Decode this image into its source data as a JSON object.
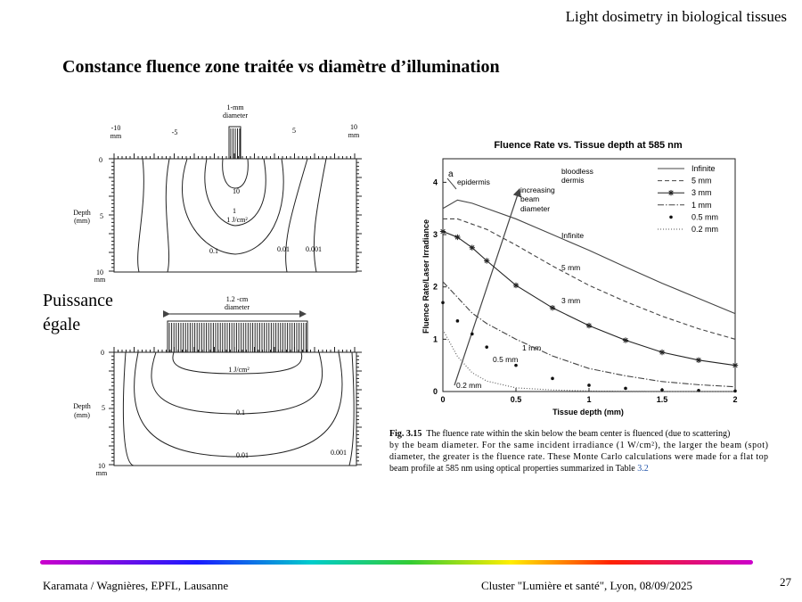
{
  "header": {
    "course": "Light dosimetry in biological tissues",
    "title": "Constance fluence zone traitée vs diamètre d’illumination"
  },
  "side_label": [
    "Puissance",
    "égale"
  ],
  "diagram_top": {
    "beam": [
      "1-mm",
      "diameter"
    ],
    "x_labels": [
      "-10",
      "mm",
      "-5",
      "5",
      "10",
      "mm"
    ],
    "depth_labels": [
      "0",
      "Depth",
      "(mm)",
      "5",
      "10",
      "mm"
    ],
    "contours": [
      "10",
      "1",
      "1 J/cm²",
      "0.1",
      "0.01",
      "0.001"
    ]
  },
  "diagram_bottom": {
    "beam": [
      "1.2 -cm",
      "diameter"
    ],
    "depth_labels": [
      "0",
      "Depth",
      "(mm)",
      "5",
      "10",
      "mm"
    ],
    "contours": [
      "1 J/cm²",
      "0.1",
      "0.01",
      "0.001"
    ]
  },
  "chart_data": {
    "type": "line",
    "title": "Fluence Rate vs. Tissue depth at 585 nm",
    "x_label": "Tissue depth (mm)",
    "y_label": "Fluence Rate/Laser Irradiance",
    "x": [
      0,
      0.1,
      0.2,
      0.3,
      0.5,
      0.75,
      1,
      1.25,
      1.5,
      1.75,
      2
    ],
    "xlim": [
      0,
      2
    ],
    "xticks": [
      0,
      0.5,
      1,
      1.5,
      2
    ],
    "ylim": [
      0,
      4.45
    ],
    "yticks": [
      0,
      1,
      2,
      3,
      4
    ],
    "grid": false,
    "legend": "upper right",
    "series": [
      {
        "name": "Infinite",
        "color": "#444444",
        "style": "solid",
        "values": [
          3.5,
          3.66,
          3.6,
          3.5,
          3.3,
          3.0,
          2.7,
          2.38,
          2.07,
          1.78,
          1.49
        ]
      },
      {
        "name": "5 mm",
        "color": "#444444",
        "style": "dashed",
        "values": [
          3.3,
          3.3,
          3.2,
          3.1,
          2.8,
          2.4,
          2.03,
          1.72,
          1.44,
          1.2,
          1.0
        ]
      },
      {
        "name": "3 mm",
        "color": "#222222",
        "style": "star",
        "values": [
          3.06,
          2.95,
          2.75,
          2.5,
          2.03,
          1.6,
          1.26,
          0.98,
          0.75,
          0.6,
          0.5
        ]
      },
      {
        "name": "1 mm",
        "color": "#444444",
        "style": "dashdot",
        "values": [
          2.1,
          1.8,
          1.5,
          1.3,
          1.0,
          0.68,
          0.44,
          0.3,
          0.19,
          0.13,
          0.09
        ]
      },
      {
        "name": "0.5 mm",
        "color": "#111111",
        "style": "dots",
        "values": [
          1.7,
          1.35,
          1.1,
          0.85,
          0.5,
          0.25,
          0.12,
          0.06,
          0.03,
          0.02,
          0.01
        ]
      },
      {
        "name": "0.2 mm",
        "color": "#555555",
        "style": "dotted",
        "values": [
          1.18,
          0.67,
          0.36,
          0.2,
          0.07,
          0.03,
          0.01,
          0.005,
          0,
          0,
          0
        ]
      }
    ],
    "annotations": [
      "a",
      "epidermis",
      "bloodless",
      "dermis",
      "increasing",
      "beam",
      "diameter",
      "Infinite",
      "5 mm",
      "3 mm",
      "1 mm",
      "0.5 mm",
      "0.2 mm"
    ]
  },
  "caption": {
    "label": "Fig. 3.15",
    "lines": [
      "The fluence rate within the skin below the beam center is fluenced (due to scattering)",
      "by the beam diameter. For the same incident irradiance (1 W/cm²), the larger the beam (spot)",
      "diameter, the greater is the fluence rate. These Monte Carlo calculations were made for a flat top",
      "beam profile at 585 nm using optical properties summarized in Table "
    ],
    "link": "3.2"
  },
  "footer": {
    "left": "Karamata / Wagnières, EPFL, Lausanne",
    "right": "Cluster \"Lumière et santé\", Lyon, 08/09/2025",
    "page": "27"
  }
}
